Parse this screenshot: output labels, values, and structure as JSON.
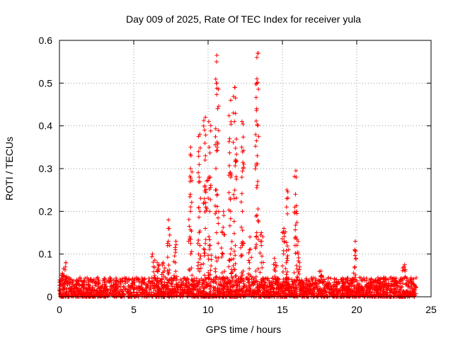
{
  "chart_data": {
    "type": "scatter",
    "title": "Day 009 of 2025, Rate Of TEC Index for receiver yula",
    "xlabel": "GPS time / hours",
    "ylabel": "ROTI / TECUs",
    "xlim": [
      0,
      25
    ],
    "ylim": [
      0,
      0.6
    ],
    "xticks": [
      "0",
      "5",
      "10",
      "15",
      "20",
      "25"
    ],
    "yticks": [
      "0",
      "0.1",
      "0.2",
      "0.3",
      "0.4",
      "0.5",
      "0.6"
    ],
    "grid": true,
    "marker": "plus",
    "color": "#ff0000",
    "baseline_band": {
      "x_start": 0,
      "x_end": 24,
      "y_min": 0,
      "y_max": 0.045
    },
    "spikes": [
      {
        "x": 0.2,
        "values": [
          0.05,
          0.055
        ]
      },
      {
        "x": 0.4,
        "values": [
          0.07,
          0.08
        ]
      },
      {
        "x": 6.3,
        "values": [
          0.07,
          0.1
        ]
      },
      {
        "x": 6.6,
        "values": [
          0.06,
          0.08
        ]
      },
      {
        "x": 7.0,
        "values": [
          0.06,
          0.08
        ]
      },
      {
        "x": 7.3,
        "values": [
          0.13,
          0.16,
          0.18
        ]
      },
      {
        "x": 7.8,
        "values": [
          0.08,
          0.11,
          0.13
        ]
      },
      {
        "x": 8.8,
        "values": [
          0.1,
          0.14,
          0.2,
          0.24,
          0.27,
          0.3,
          0.33,
          0.35
        ]
      },
      {
        "x": 9.4,
        "values": [
          0.1,
          0.15,
          0.2,
          0.28,
          0.34,
          0.38
        ]
      },
      {
        "x": 9.8,
        "values": [
          0.11,
          0.16,
          0.21,
          0.26,
          0.33,
          0.39,
          0.42
        ]
      },
      {
        "x": 10.1,
        "values": [
          0.12,
          0.2,
          0.28,
          0.35,
          0.41
        ]
      },
      {
        "x": 10.6,
        "values": [
          0.15,
          0.25,
          0.35,
          0.44,
          0.5,
          0.55,
          0.565
        ]
      },
      {
        "x": 11.0,
        "values": [
          0.1,
          0.15,
          0.2
        ]
      },
      {
        "x": 11.5,
        "values": [
          0.1,
          0.2,
          0.28,
          0.37,
          0.46
        ]
      },
      {
        "x": 11.8,
        "values": [
          0.12,
          0.23,
          0.32,
          0.41,
          0.49
        ]
      },
      {
        "x": 12.3,
        "values": [
          0.12,
          0.2,
          0.28,
          0.35,
          0.41
        ]
      },
      {
        "x": 12.8,
        "values": [
          0.08,
          0.11,
          0.14
        ]
      },
      {
        "x": 13.3,
        "values": [
          0.15,
          0.27,
          0.33,
          0.44,
          0.51,
          0.56,
          0.57
        ]
      },
      {
        "x": 13.6,
        "values": [
          0.08,
          0.12,
          0.15
        ]
      },
      {
        "x": 14.5,
        "values": [
          0.06,
          0.08,
          0.09
        ]
      },
      {
        "x": 15.1,
        "values": [
          0.1,
          0.13,
          0.16
        ]
      },
      {
        "x": 15.3,
        "values": [
          0.21,
          0.23,
          0.25
        ]
      },
      {
        "x": 15.9,
        "values": [
          0.12,
          0.2,
          0.24,
          0.28,
          0.295
        ]
      },
      {
        "x": 16.1,
        "values": [
          0.08,
          0.1,
          0.13
        ]
      },
      {
        "x": 17.6,
        "values": [
          0.05,
          0.06
        ]
      },
      {
        "x": 19.9,
        "values": [
          0.07,
          0.09,
          0.11,
          0.13
        ]
      },
      {
        "x": 23.2,
        "values": [
          0.06,
          0.07,
          0.075
        ]
      }
    ]
  }
}
